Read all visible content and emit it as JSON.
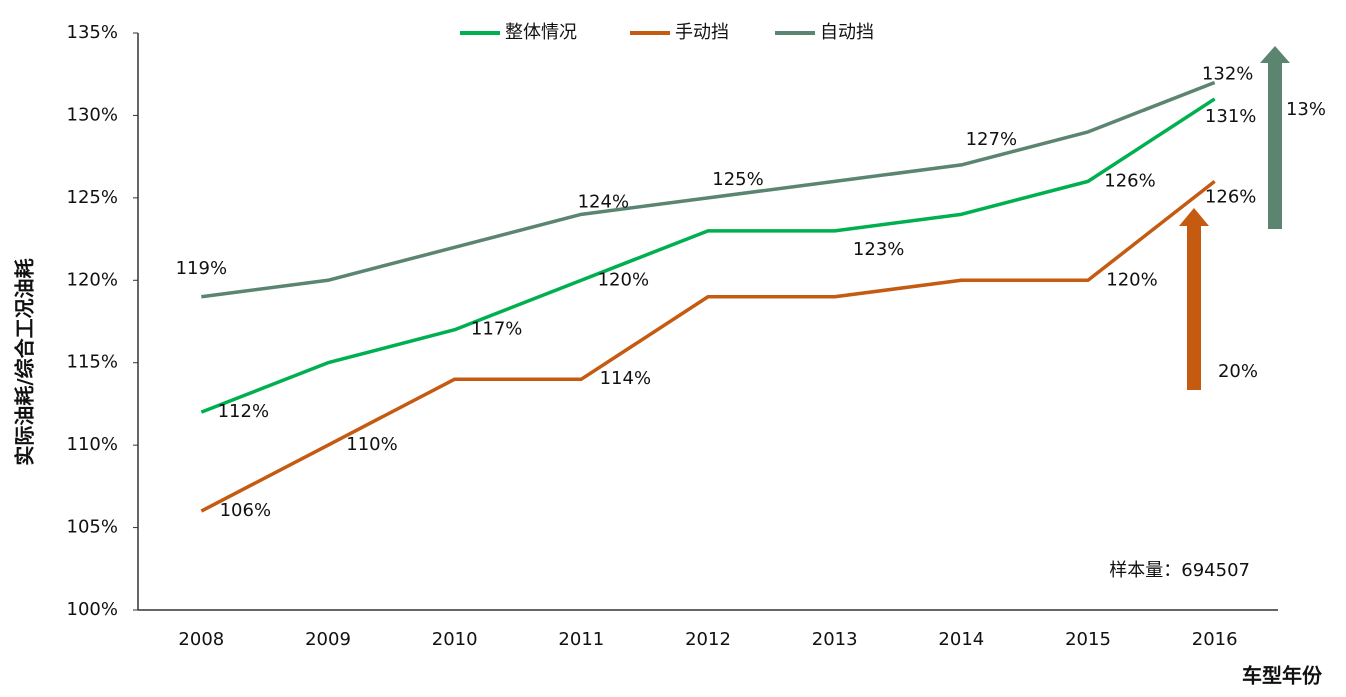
{
  "chart_data": {
    "type": "line",
    "y_label": "实际油耗/综合工况油耗",
    "x_label": "车型年份",
    "categories": [
      "2008",
      "2009",
      "2010",
      "2011",
      "2012",
      "2013",
      "2014",
      "2015",
      "2016"
    ],
    "series": [
      {
        "name": "整体情况",
        "color": "#00b050",
        "values": [
          112,
          115,
          117,
          120,
          123,
          123,
          124,
          126,
          131
        ],
        "value_labels": [
          "112%",
          null,
          "117%",
          "120%",
          null,
          "123%",
          null,
          "126%",
          "131%"
        ]
      },
      {
        "name": "手动挡",
        "color": "#c55a11",
        "values": [
          106,
          110,
          114,
          114,
          119,
          119,
          120,
          120,
          126
        ],
        "value_labels": [
          "106%",
          "110%",
          null,
          "114%",
          null,
          null,
          null,
          "120%",
          "126%"
        ]
      },
      {
        "name": "自动挡",
        "color": "#5b8571",
        "values": [
          119,
          120,
          122,
          124,
          125,
          126,
          127,
          129,
          132
        ],
        "value_labels": [
          "119%",
          null,
          null,
          "124%",
          "125%",
          null,
          "127%",
          null,
          "132%"
        ]
      }
    ],
    "ylim": [
      100,
      135
    ],
    "yticks": [
      {
        "value": 100,
        "label": "100%"
      },
      {
        "value": 105,
        "label": "105%"
      },
      {
        "value": 110,
        "label": "110%"
      },
      {
        "value": 115,
        "label": "115%"
      },
      {
        "value": 120,
        "label": "120%"
      },
      {
        "value": 125,
        "label": "125%"
      },
      {
        "value": 130,
        "label": "130%"
      },
      {
        "value": 135,
        "label": "135%"
      }
    ],
    "annotations": [
      "13%",
      "20%",
      "样本量：694507"
    ],
    "legend": "top"
  }
}
